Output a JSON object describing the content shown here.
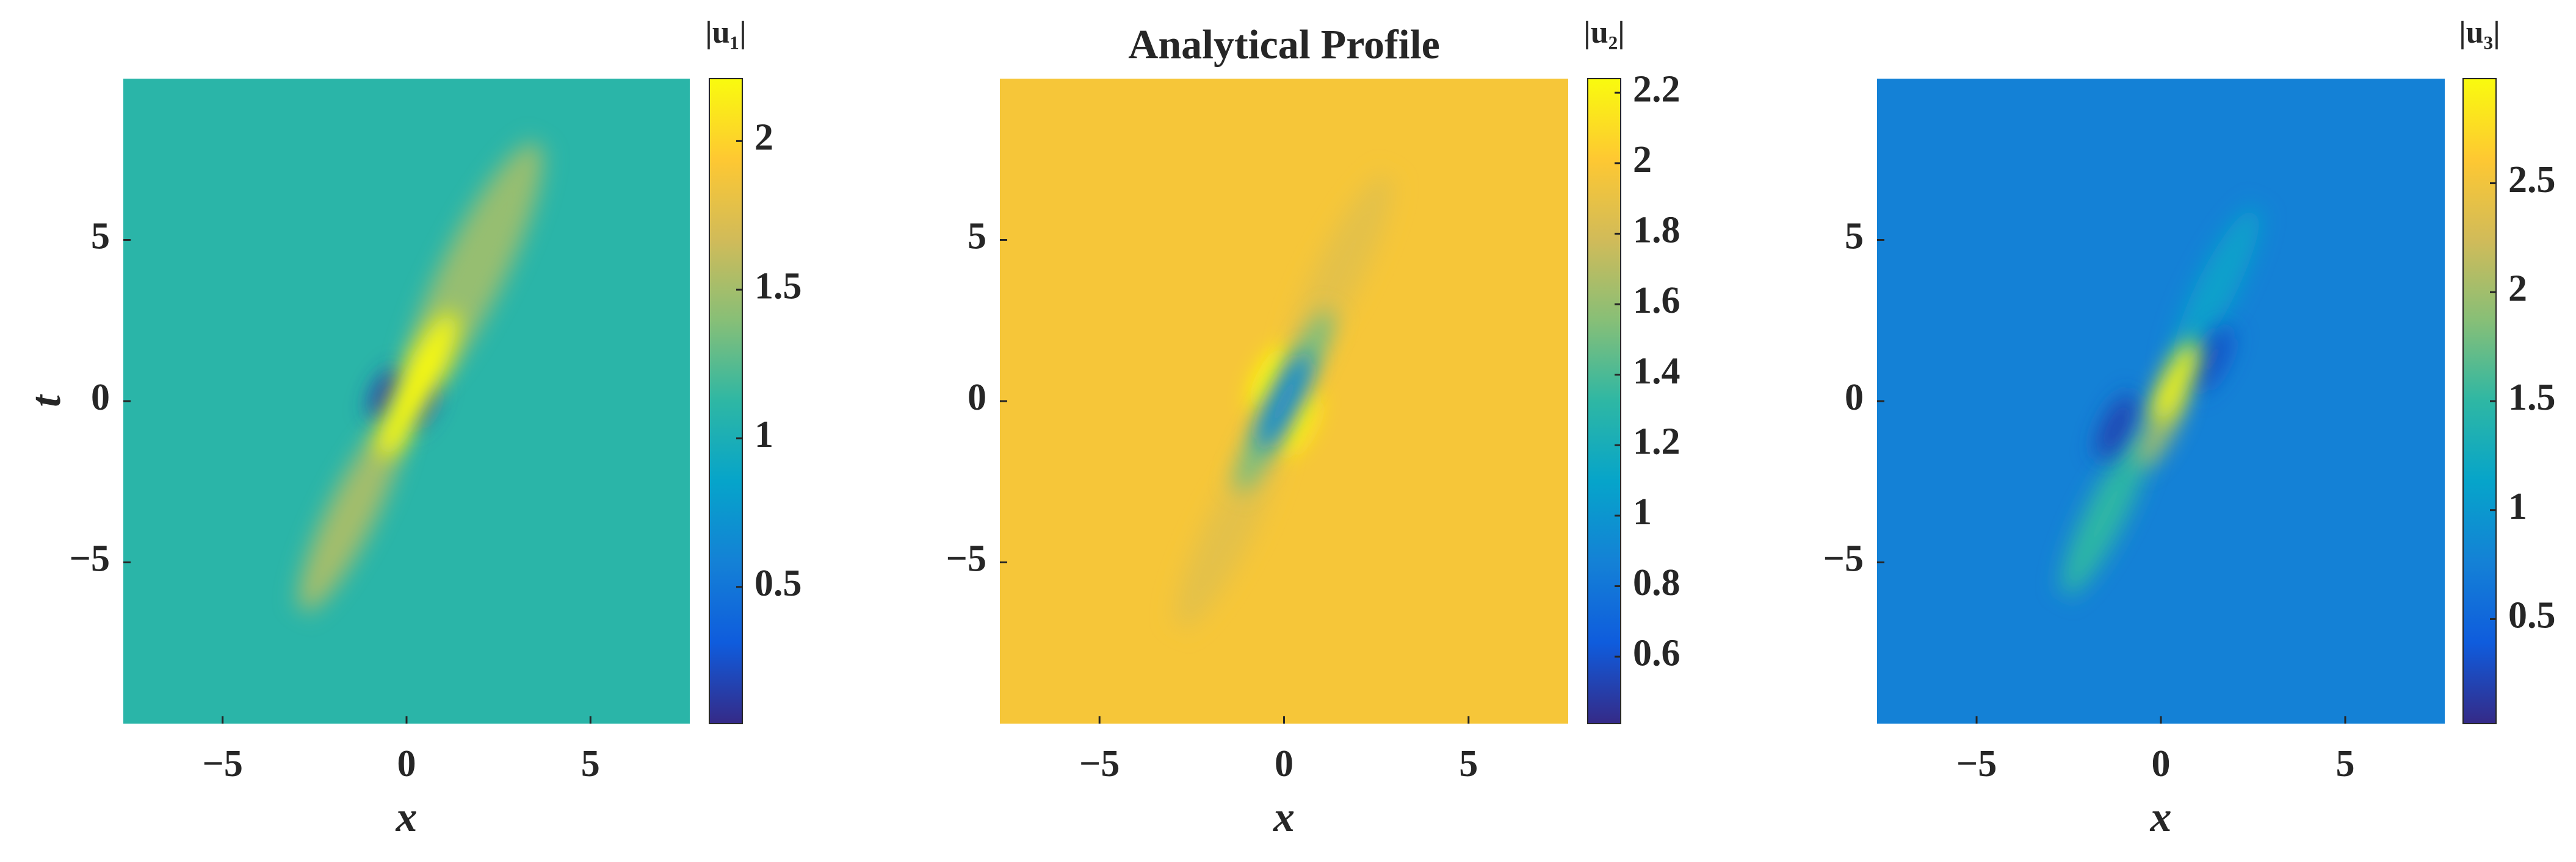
{
  "chart_data": [
    {
      "type": "heatmap",
      "colormap": "parula",
      "xlim": [
        -7.7,
        7.7
      ],
      "ylim": [
        -10,
        10
      ],
      "xticks": [
        {
          "value": -5,
          "label": "−5"
        },
        0,
        5
      ],
      "yticks": [
        {
          "value": -5,
          "label": "−5"
        },
        0,
        5
      ],
      "xlabel": "x",
      "ylabel": "t",
      "colorbar": {
        "label": "|u₁|",
        "lim": [
          0.04,
          2.21
        ],
        "ticks": [
          0.5,
          1,
          1.5,
          2
        ]
      },
      "background": 1.1,
      "features": [
        {
          "x": 1.8,
          "t": 4,
          "z": 1.45,
          "length": 8
        },
        {
          "x": -1.5,
          "t": -3.5,
          "z": 1.5,
          "length": 6
        },
        {
          "x": -0.55,
          "t": 0.2,
          "z": 0.15,
          "length": 1.5
        },
        {
          "x": 0.4,
          "t": -0.1,
          "z": 0.25,
          "length": 1.5
        },
        {
          "x": 0.3,
          "t": 0.5,
          "z": 2.2,
          "length": 4.5
        }
      ]
    },
    {
      "type": "heatmap",
      "colormap": "parula",
      "title": "Analytical Profile",
      "xlim": [
        -7.7,
        7.7
      ],
      "ylim": [
        -10,
        10
      ],
      "xticks": [
        {
          "value": -5,
          "label": "−5"
        },
        0,
        5
      ],
      "yticks": [
        {
          "value": -5,
          "label": "−5"
        },
        0,
        5
      ],
      "xlabel": "x",
      "colorbar": {
        "label": "|u₂|",
        "lim": [
          0.41,
          2.24
        ],
        "ticks": [
          0.6,
          0.8,
          1,
          1.2,
          1.4,
          1.6,
          1.8,
          2,
          2.2
        ]
      },
      "background": 1.97,
      "features": [
        {
          "x": 1.5,
          "t": 4,
          "z": 1.88,
          "length": 6
        },
        {
          "x": -1.5,
          "t": -4,
          "z": 1.88,
          "length": 6
        },
        {
          "x": -0.4,
          "t": 0.7,
          "z": 2.24,
          "length": 2
        },
        {
          "x": 0.4,
          "t": -0.7,
          "z": 2.2,
          "length": 2
        },
        {
          "x": 0.6,
          "t": 1.3,
          "z": 1.5,
          "length": 3
        },
        {
          "x": -0.6,
          "t": -1.3,
          "z": 1.5,
          "length": 3
        },
        {
          "x": 0,
          "t": 0,
          "z": 0.9,
          "length": 3
        }
      ]
    },
    {
      "type": "heatmap",
      "colormap": "parula",
      "xlim": [
        -7.7,
        7.7
      ],
      "ylim": [
        -10,
        10
      ],
      "xticks": [
        {
          "value": -5,
          "label": "−5"
        },
        0,
        5
      ],
      "yticks": [
        {
          "value": -5,
          "label": "−5"
        },
        0,
        5
      ],
      "xlabel": "x",
      "colorbar": {
        "label": "|u₃|",
        "lim": [
          0.02,
          2.98
        ],
        "ticks": [
          0.5,
          1,
          1.5,
          2,
          2.5
        ]
      },
      "background": 0.76,
      "features": [
        {
          "x": -1.5,
          "t": -3.5,
          "z": 1.5,
          "length": 5
        },
        {
          "x": 1.5,
          "t": 3.5,
          "z": 1.1,
          "length": 5
        },
        {
          "x": -1.2,
          "t": -0.8,
          "z": 0.2,
          "length": 2
        },
        {
          "x": 1.4,
          "t": 1.3,
          "z": 0.3,
          "length": 2
        },
        {
          "x": 0,
          "t": -0.8,
          "z": 2.0,
          "length": 2.5
        },
        {
          "x": 0.4,
          "t": 0.6,
          "z": 2.95,
          "length": 2.5
        }
      ]
    }
  ]
}
